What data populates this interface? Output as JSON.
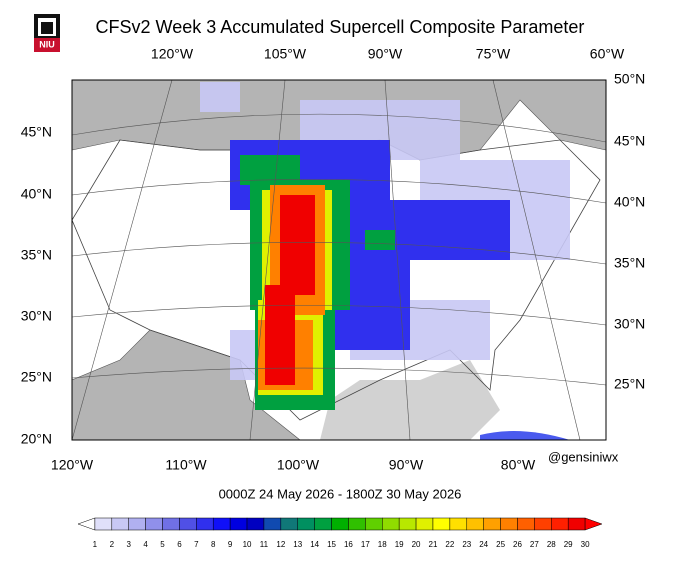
{
  "title": "CFSv2 Week 3 Accumulated Supercell Composite Parameter",
  "logo": "NIU",
  "map": {
    "top_labels": [
      "120°W",
      "105°W",
      "90°W",
      "75°W",
      "60°W"
    ],
    "right_labels": [
      "50°N",
      "45°N",
      "40°N",
      "35°N",
      "30°N",
      "25°N"
    ],
    "left_labels": [
      "45°N",
      "40°N",
      "35°N",
      "30°N",
      "25°N",
      "20°N"
    ],
    "bottom_labels": [
      "120°W",
      "110°W",
      "100°W",
      "90°W",
      "80°W"
    ]
  },
  "credit": "@gensiniwx",
  "date_range": "0000Z 24  May  2026  - 1800Z 30  May  2026",
  "colorbar": {
    "labels": [
      1,
      2,
      3,
      4,
      5,
      6,
      7,
      8,
      9,
      10,
      11,
      12,
      13,
      14,
      15,
      16,
      17,
      18,
      19,
      20,
      21,
      22,
      23,
      24,
      25,
      26,
      27,
      28,
      29,
      30
    ],
    "colors": [
      "#ffffff",
      "#e0e0fa",
      "#c8c8f5",
      "#b0b0f0",
      "#9090eb",
      "#7070e6",
      "#5050e6",
      "#3030ee",
      "#1010f8",
      "#0000e0",
      "#0000c0",
      "#104ab0",
      "#107878",
      "#009060",
      "#00a040",
      "#00b000",
      "#30c000",
      "#60d000",
      "#90dc00",
      "#b8e800",
      "#e0f000",
      "#ffff00",
      "#ffe000",
      "#ffc000",
      "#ffa000",
      "#ff8000",
      "#ff6000",
      "#ff4000",
      "#ff2000",
      "#f00000",
      "#ff0000"
    ]
  }
}
